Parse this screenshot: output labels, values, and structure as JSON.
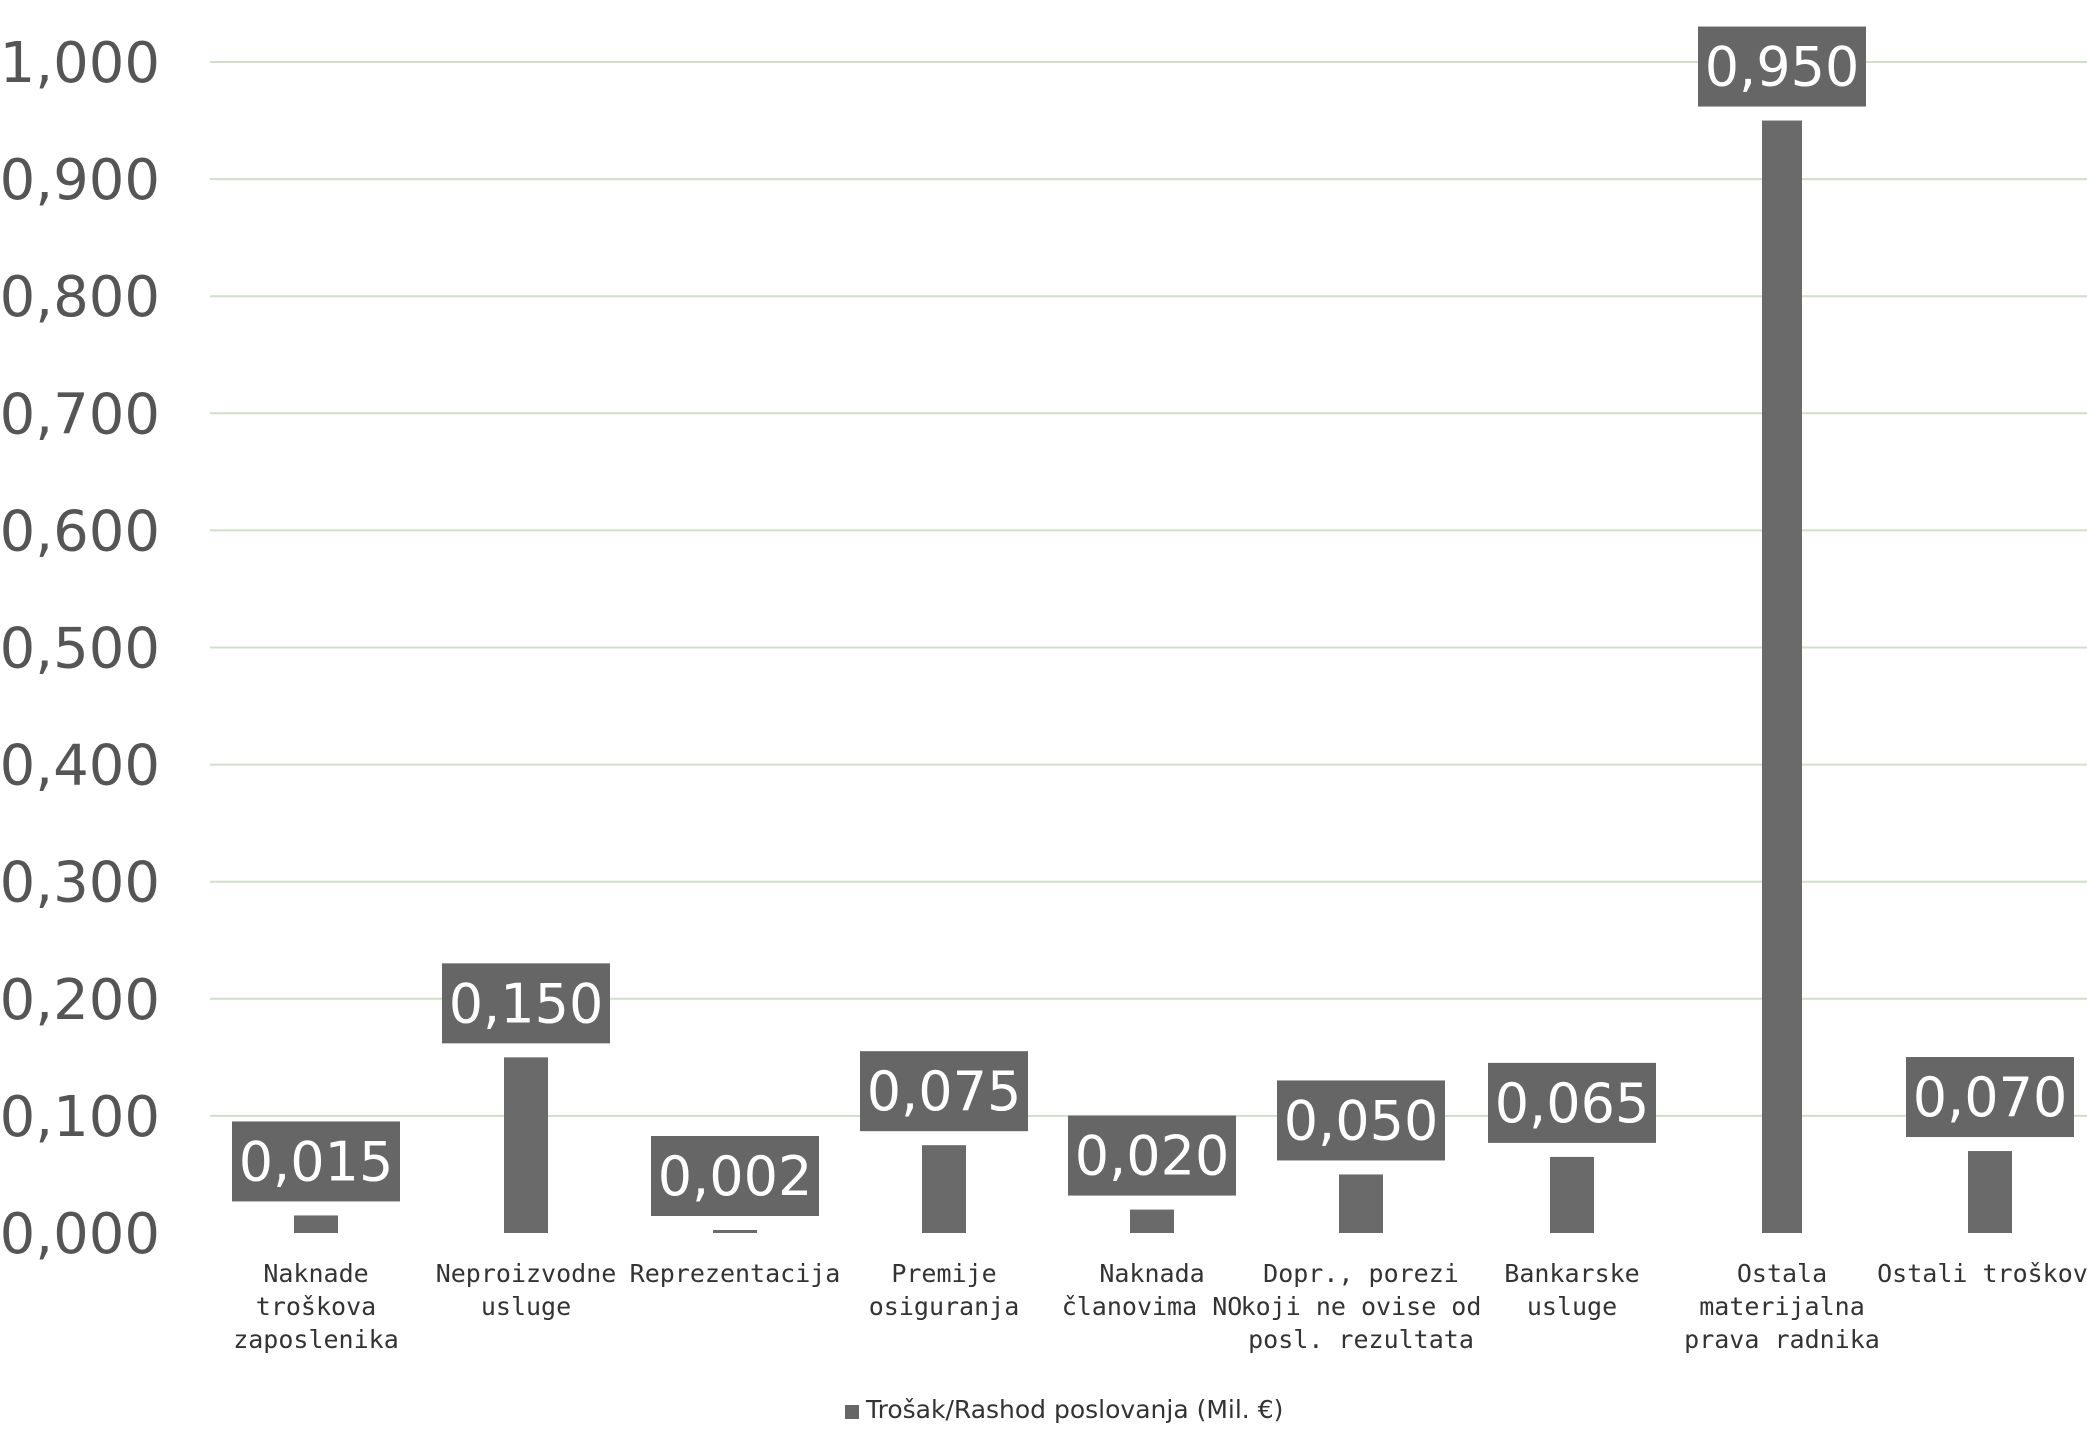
{
  "chart_data": {
    "type": "bar",
    "categories": [
      "Naknade troškova zaposlenika",
      "Neproizvodne usluge",
      "Reprezentacija",
      "Premije osiguranja",
      "Naknada članovima NO",
      "Dopr., porezi koji ne ovise od posl. rezultata",
      "Bankarske usluge",
      "Ostala materijalna prava radnika",
      "Ostali troškovi"
    ],
    "category_lines": [
      [
        "Naknade",
        "troškova",
        "zaposlenika"
      ],
      [
        "Neproizvodne",
        "usluge"
      ],
      [
        "Reprezentacija"
      ],
      [
        "Premije",
        "osiguranja"
      ],
      [
        "Naknada",
        "članovima NO"
      ],
      [
        "Dopr., porezi",
        "koji ne ovise od",
        "posl. rezultata"
      ],
      [
        "Bankarske",
        "usluge"
      ],
      [
        "Ostala",
        "materijalna",
        "prava radnika"
      ],
      [
        "Ostali troškovi"
      ]
    ],
    "series": [
      {
        "name": "Trošak/Rashod poslovanja (Mil. €)",
        "values": [
          0.015,
          0.15,
          0.002,
          0.075,
          0.02,
          0.05,
          0.065,
          0.95,
          0.07
        ],
        "value_labels": [
          "0,015",
          "0,150",
          "0,002",
          "0,075",
          "0,020",
          "0,050",
          "0,065",
          "0,950",
          "0,070"
        ]
      }
    ],
    "yticks": [
      "0,000",
      "0,100",
      "0,200",
      "0,300",
      "0,400",
      "0,500",
      "0,600",
      "0,700",
      "0,800",
      "0,900",
      "1,000"
    ],
    "ylim": [
      0,
      1.0
    ],
    "grid": true,
    "legend_position": "bottom-center",
    "title": "",
    "xlabel": "",
    "ylabel": "",
    "colors": {
      "bar": "#6a6a6a",
      "label_box": "#666666",
      "label_text": "#ffffff",
      "grid": "#cfe0c8",
      "axis_text": "#555555"
    }
  },
  "legend": {
    "label": "Trošak/Rashod poslovanja (Mil. €)"
  }
}
